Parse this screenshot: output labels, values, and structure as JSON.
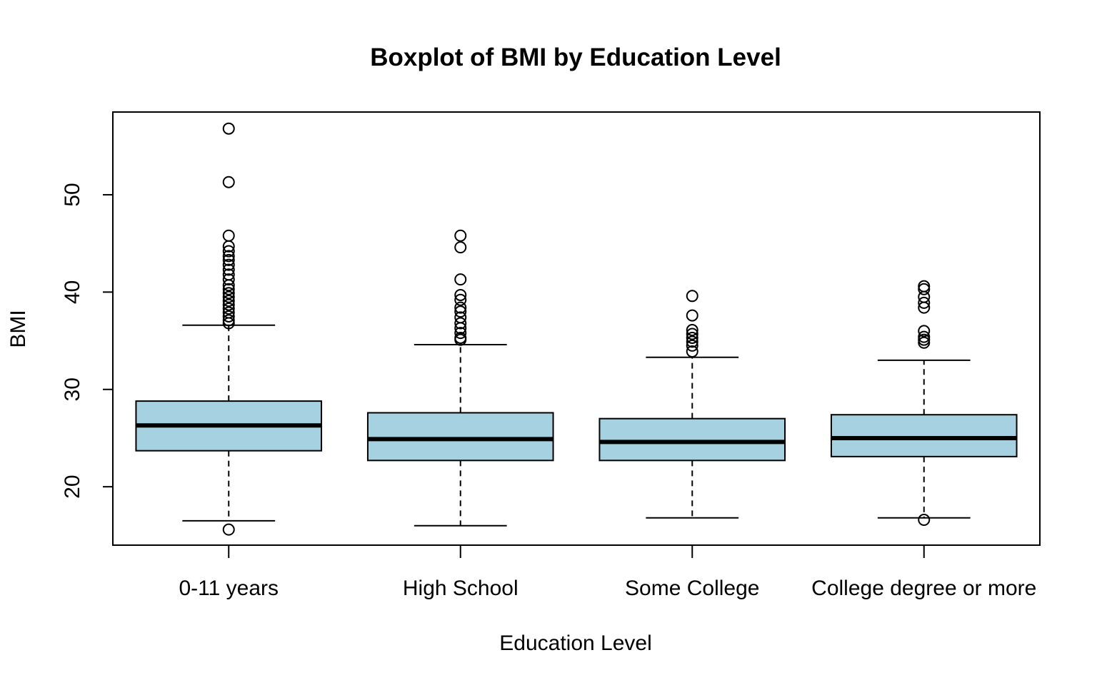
{
  "chart_data": {
    "type": "boxplot",
    "title": "Boxplot of BMI by Education Level",
    "xlabel": "Education Level",
    "ylabel": "BMI",
    "ylim": [
      14,
      58.5
    ],
    "yticks": [
      20,
      30,
      40,
      50
    ],
    "grid": false,
    "legend": "none",
    "box_color": "#a6d1e0",
    "categories": [
      "0-11 years",
      "High School",
      "Some College",
      "College degree or more"
    ],
    "boxes": [
      {
        "label": "0-11 years",
        "whisker_low": 16.5,
        "q1": 23.7,
        "median": 26.3,
        "q3": 28.8,
        "whisker_high": 36.6,
        "outliers": [
          56.8,
          51.3,
          45.8,
          44.7,
          44.2,
          43.7,
          43.3,
          42.8,
          42.3,
          41.8,
          41.3,
          40.7,
          40.3,
          39.9,
          39.5,
          39.1,
          38.7,
          38.3,
          37.9,
          37.5,
          37.1,
          36.8,
          15.6
        ]
      },
      {
        "label": "High School",
        "whisker_low": 16.0,
        "q1": 22.7,
        "median": 24.9,
        "q3": 27.6,
        "whisker_high": 34.6,
        "outliers": [
          45.8,
          44.6,
          41.3,
          39.7,
          39.2,
          38.4,
          38.0,
          37.4,
          36.8,
          36.3,
          35.8,
          35.3,
          35.1
        ]
      },
      {
        "label": "Some College",
        "whisker_low": 16.8,
        "q1": 22.7,
        "median": 24.6,
        "q3": 27.0,
        "whisker_high": 33.3,
        "outliers": [
          39.6,
          37.6,
          36.1,
          35.7,
          35.3,
          34.9,
          34.5,
          33.9
        ]
      },
      {
        "label": "College degree or more",
        "whisker_low": 16.8,
        "q1": 23.1,
        "median": 25.0,
        "q3": 27.4,
        "whisker_high": 33.0,
        "outliers": [
          40.6,
          40.3,
          39.5,
          38.9,
          38.4,
          36.0,
          35.4,
          35.1,
          34.8,
          16.6
        ]
      }
    ]
  }
}
